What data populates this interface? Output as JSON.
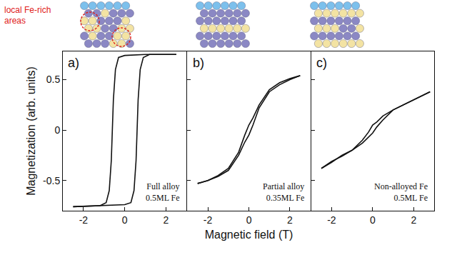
{
  "chart_data": [
    {
      "type": "line",
      "title": "a)",
      "annotation": [
        "Full alloy",
        "0.5ML Fe"
      ],
      "y_label": "Magnetization (arb. units)",
      "xlim": [
        -3,
        3
      ],
      "xticks": [
        -2,
        0,
        2
      ],
      "ylim": [
        -0.8,
        0.78
      ],
      "yticks": [
        -0.5,
        0,
        0.5
      ],
      "grid": false,
      "series": [
        {
          "color": "#111111",
          "x": [
            2.5,
            1,
            0,
            -0.3,
            -0.45,
            -0.55,
            -0.6,
            -0.65,
            -0.75,
            -0.9,
            -1.2,
            -2.5
          ],
          "values": [
            0.75,
            0.75,
            0.74,
            0.72,
            0.6,
            0.3,
            0,
            -0.3,
            -0.6,
            -0.72,
            -0.75,
            -0.76
          ]
        },
        {
          "color": "#111111",
          "x": [
            -2.5,
            -1,
            0,
            0.3,
            0.45,
            0.55,
            0.6,
            0.65,
            0.75,
            0.9,
            1.2,
            2.5
          ],
          "values": [
            -0.76,
            -0.75,
            -0.74,
            -0.72,
            -0.6,
            -0.3,
            0,
            0.3,
            0.6,
            0.72,
            0.75,
            0.75
          ]
        }
      ]
    },
    {
      "type": "line",
      "title": "b)",
      "annotation": [
        "Partial alloy",
        "0.35ML Fe"
      ],
      "x_label": "Magnetic field (T)",
      "tick_labels": "x",
      "xlim": [
        -3,
        3
      ],
      "xticks": [
        -2,
        0,
        2
      ],
      "ylim": [
        -0.8,
        0.78
      ],
      "yticks": [
        -0.5,
        0,
        0.5
      ],
      "grid": false,
      "series": [
        {
          "color": "#111111",
          "x": [
            2.5,
            2,
            1.5,
            1,
            0.5,
            0.2,
            0,
            -0.2,
            -0.5,
            -1,
            -1.5,
            -2,
            -2.5
          ],
          "values": [
            0.54,
            0.51,
            0.47,
            0.4,
            0.25,
            0.12,
            0.05,
            -0.05,
            -0.22,
            -0.38,
            -0.45,
            -0.5,
            -0.53
          ]
        },
        {
          "color": "#111111",
          "x": [
            -2.5,
            -2,
            -1.5,
            -1,
            -0.5,
            -0.2,
            0,
            0.2,
            0.5,
            1,
            1.5,
            2,
            2.5
          ],
          "values": [
            -0.53,
            -0.5,
            -0.46,
            -0.4,
            -0.25,
            -0.12,
            -0.05,
            0.05,
            0.22,
            0.38,
            0.45,
            0.5,
            0.54
          ]
        }
      ]
    },
    {
      "type": "line",
      "title": "c)",
      "annotation": [
        "Non-alloyed Fe",
        "0.5ML Fe"
      ],
      "tick_labels": "x",
      "xlim": [
        -3,
        3
      ],
      "xticks": [
        -2,
        0,
        2
      ],
      "ylim": [
        -0.8,
        0.78
      ],
      "yticks": [
        -0.5,
        0,
        0.5
      ],
      "grid": false,
      "series": [
        {
          "color": "#111111",
          "x": [
            2.8,
            2,
            1.5,
            1,
            0.5,
            0.2,
            0,
            -0.2,
            -0.5,
            -1,
            -1.5,
            -2,
            -2.5
          ],
          "values": [
            0.38,
            0.3,
            0.25,
            0.2,
            0.14,
            0.08,
            0.05,
            -0.02,
            -0.1,
            -0.2,
            -0.25,
            -0.32,
            -0.38
          ]
        },
        {
          "color": "#111111",
          "x": [
            -2.5,
            -2,
            -1.5,
            -1,
            -0.5,
            -0.2,
            0,
            0.2,
            0.5,
            1,
            1.5,
            2,
            2.8
          ],
          "values": [
            -0.38,
            -0.31,
            -0.26,
            -0.2,
            -0.13,
            -0.07,
            -0.03,
            0.03,
            0.1,
            0.2,
            0.25,
            0.3,
            0.38
          ]
        }
      ]
    }
  ],
  "illustration": {
    "label": "local Fe-rich areas"
  }
}
